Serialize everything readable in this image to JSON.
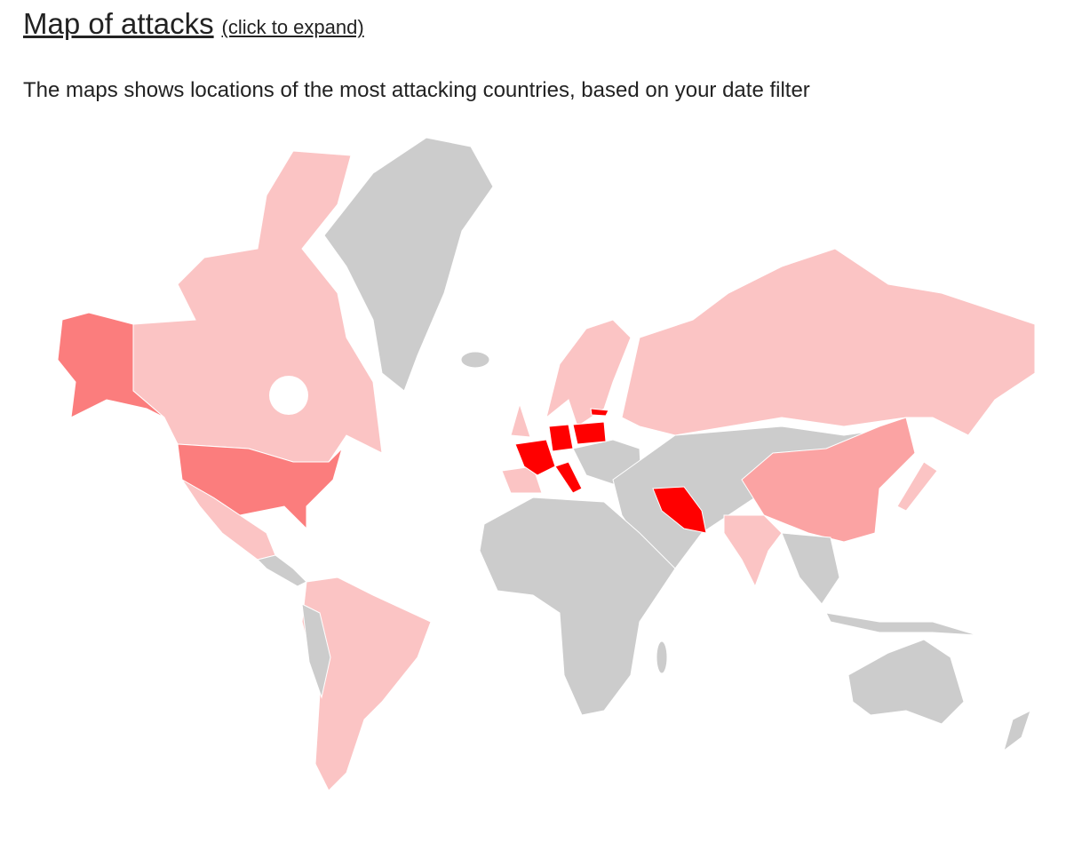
{
  "header": {
    "title": "Map of attacks",
    "link": "(click to expand)"
  },
  "description": "The maps shows locations of the most attacking countries, based on your date filter"
}
